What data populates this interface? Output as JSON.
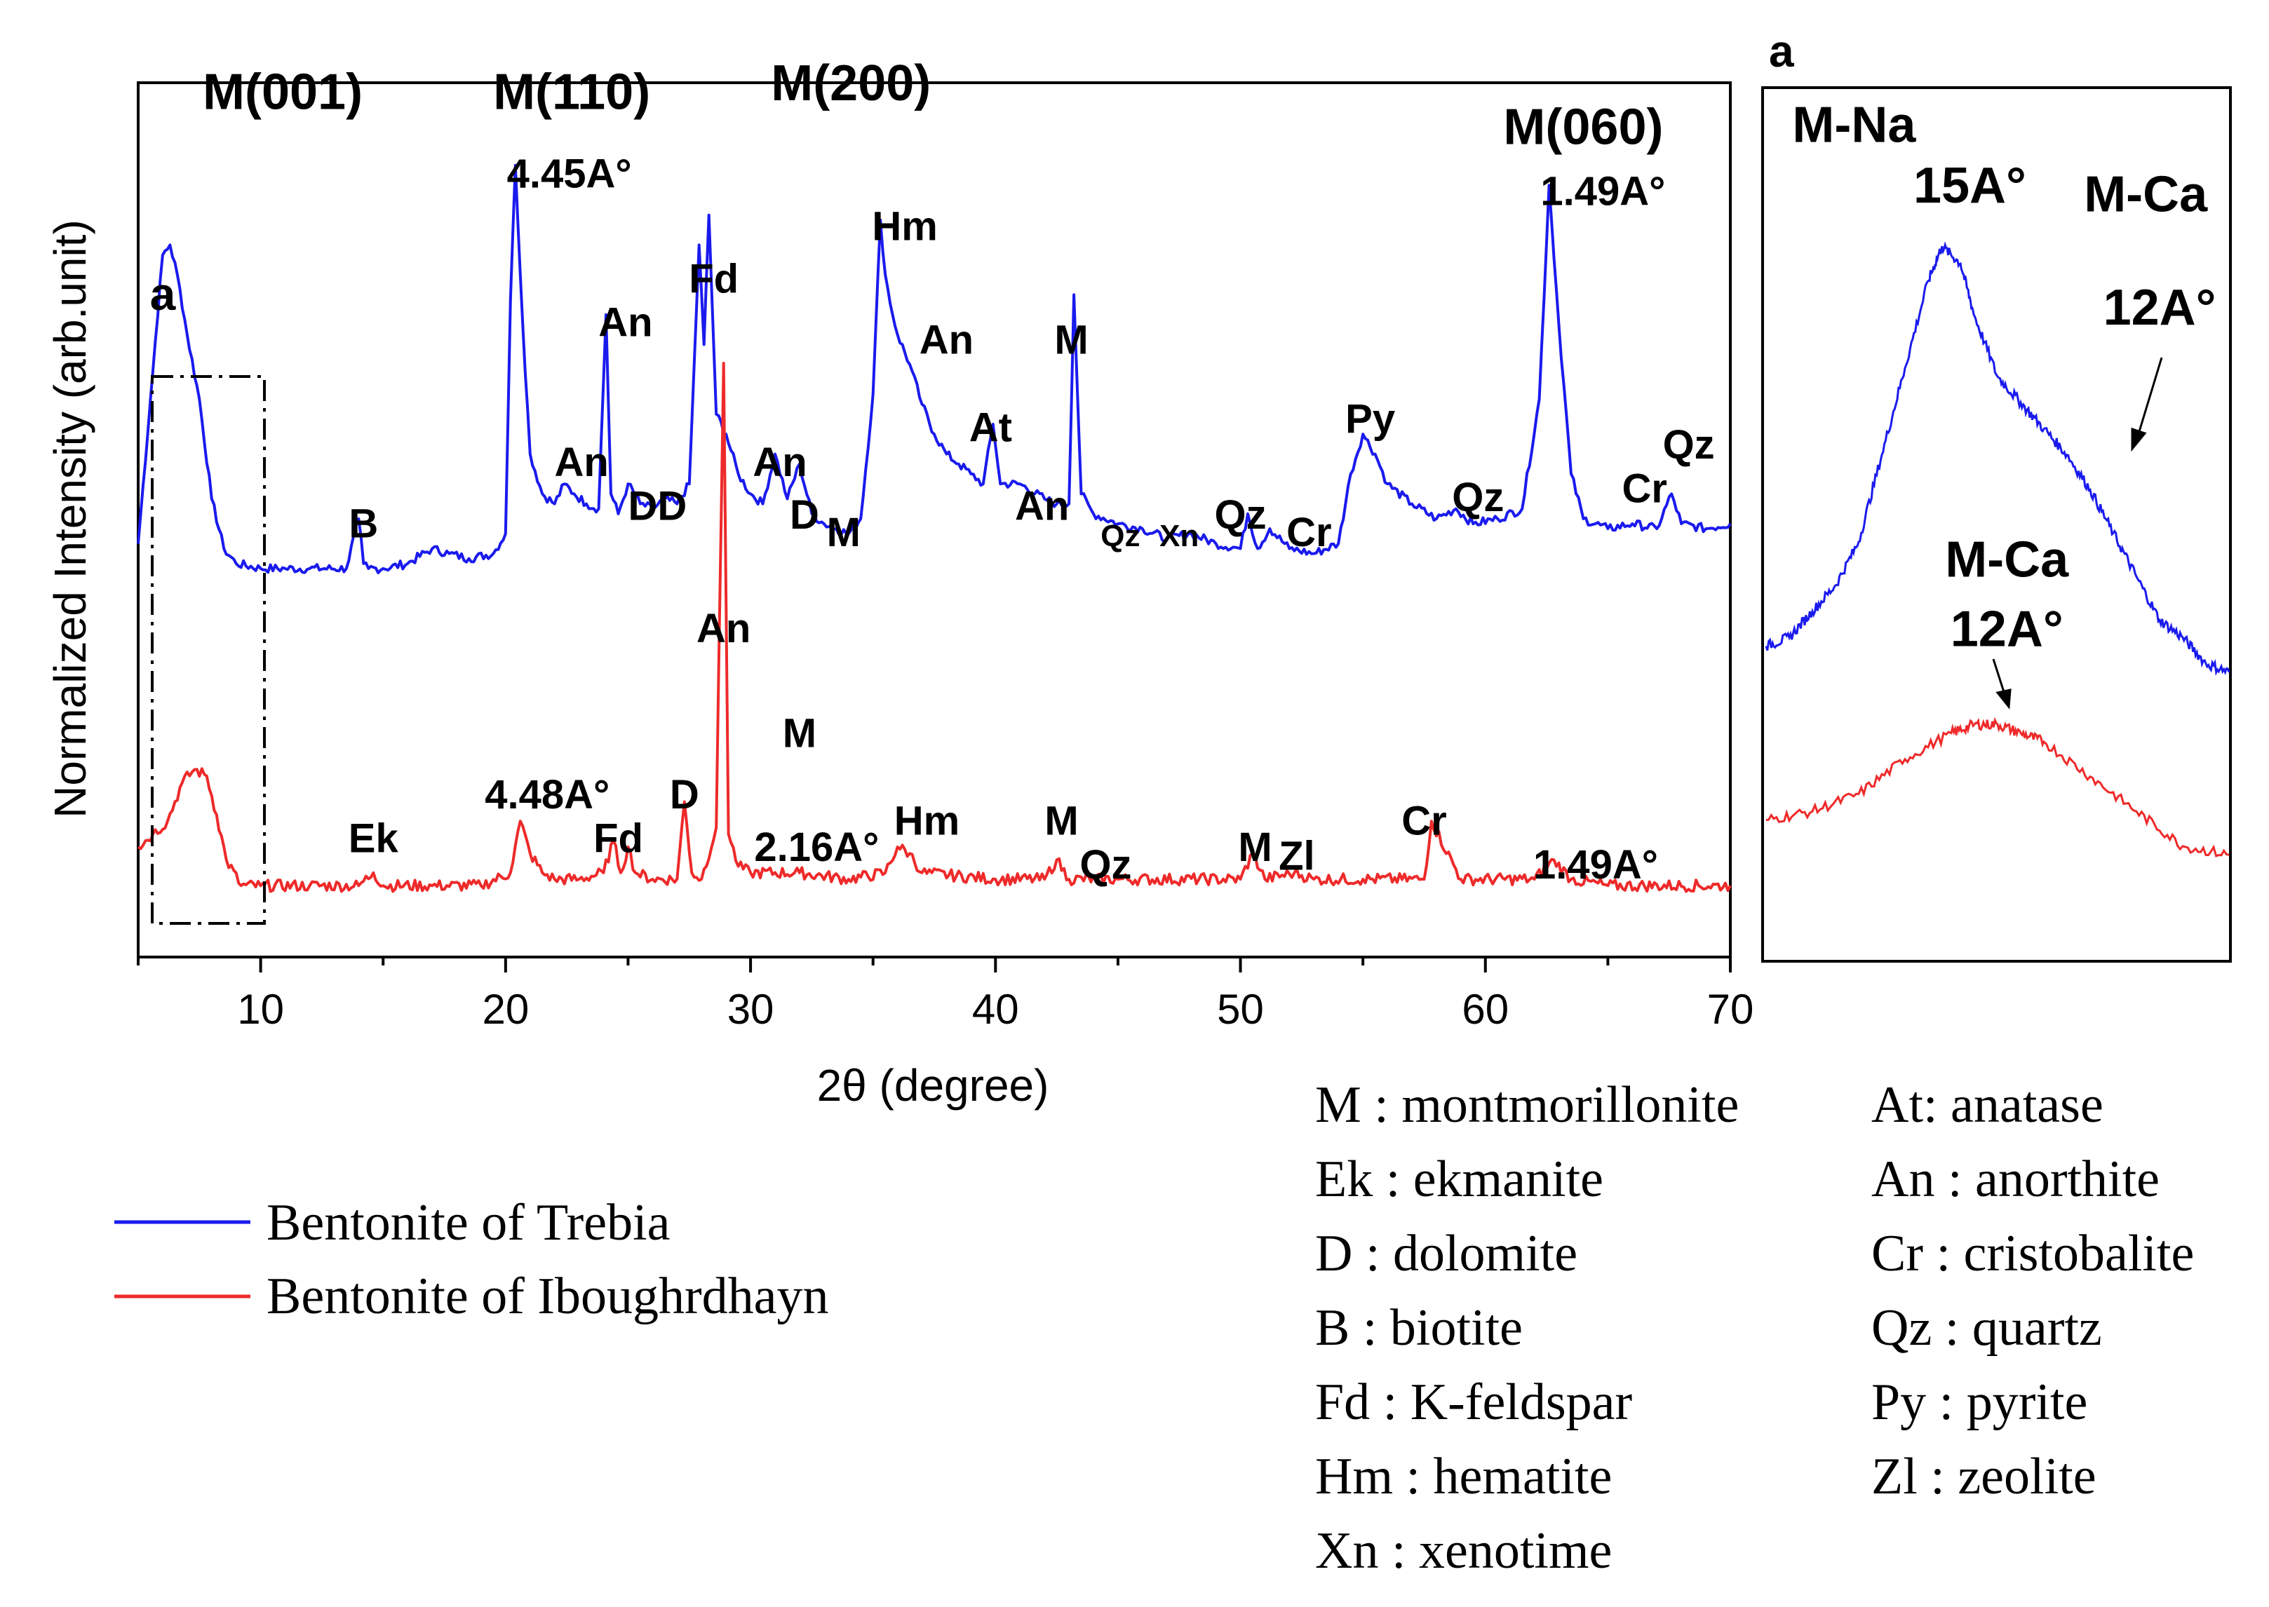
{
  "chart_data": [
    {
      "type": "line",
      "title": "",
      "xlabel": "2θ (degree)",
      "ylabel": "Normalized Intensity (arb.unit)",
      "xlim": [
        5,
        70
      ],
      "ylim": [
        0,
        1
      ],
      "xticks": [
        10,
        20,
        30,
        40,
        50,
        60,
        70
      ],
      "xtick_labels": [
        "10",
        "20",
        "30",
        "40",
        "50",
        "60",
        "70"
      ],
      "series": [
        {
          "name": "Bentonite of Trebia",
          "color": "#1a1aee",
          "x": [
            5.0,
            5.5,
            6.0,
            6.3,
            6.6,
            7.0,
            7.5,
            8.0,
            8.5,
            9.0,
            10.0,
            11.0,
            12.0,
            13.5,
            14.0,
            14.2,
            14.4,
            15.0,
            16.0,
            17.0,
            17.7,
            18.5,
            19.5,
            20.0,
            20.2,
            20.4,
            20.7,
            21.0,
            21.5,
            22.0,
            22.4,
            22.8,
            23.3,
            23.8,
            24.1,
            24.3,
            24.6,
            25.0,
            25.5,
            26.0,
            26.5,
            27.0,
            27.5,
            27.9,
            28.1,
            28.3,
            28.6,
            29.0,
            29.5,
            30.0,
            30.5,
            31.0,
            31.5,
            32.0,
            32.5,
            33.0,
            33.5,
            34.0,
            34.5,
            35.0,
            35.3,
            35.5,
            35.8,
            36.0,
            36.5,
            37.0,
            37.5,
            38.0,
            38.5,
            39.0,
            39.5,
            39.9,
            40.2,
            41.0,
            42.0,
            42.5,
            43.0,
            43.2,
            43.5,
            44.0,
            45.0,
            46.0,
            47.0,
            48.0,
            49.0,
            50.0,
            50.3,
            50.7,
            51.2,
            52.0,
            53.0,
            54.0,
            54.5,
            55.0,
            55.5,
            56.0,
            57.0,
            58.0,
            58.8,
            59.5,
            60.5,
            61.5,
            62.2,
            62.6,
            63.0,
            63.5,
            64.0,
            65.0,
            66.0,
            67.0,
            67.6,
            68.0,
            69.0,
            70.0
          ],
          "values": [
            0.26,
            0.55,
            0.84,
            0.86,
            0.8,
            0.68,
            0.55,
            0.35,
            0.25,
            0.22,
            0.21,
            0.21,
            0.21,
            0.21,
            0.31,
            0.22,
            0.21,
            0.21,
            0.22,
            0.25,
            0.24,
            0.23,
            0.24,
            0.28,
            0.75,
            1.02,
            0.7,
            0.44,
            0.36,
            0.34,
            0.38,
            0.36,
            0.34,
            0.33,
            0.72,
            0.36,
            0.32,
            0.38,
            0.34,
            0.33,
            0.35,
            0.34,
            0.38,
            0.86,
            0.66,
            0.92,
            0.52,
            0.48,
            0.4,
            0.36,
            0.34,
            0.44,
            0.35,
            0.42,
            0.32,
            0.3,
            0.29,
            0.28,
            0.31,
            0.56,
            0.91,
            0.8,
            0.72,
            0.68,
            0.62,
            0.54,
            0.48,
            0.44,
            0.42,
            0.4,
            0.38,
            0.5,
            0.38,
            0.38,
            0.35,
            0.34,
            0.34,
            0.76,
            0.36,
            0.32,
            0.3,
            0.29,
            0.27,
            0.28,
            0.26,
            0.25,
            0.32,
            0.25,
            0.29,
            0.25,
            0.24,
            0.26,
            0.4,
            0.48,
            0.44,
            0.38,
            0.34,
            0.31,
            0.33,
            0.3,
            0.31,
            0.33,
            0.55,
            0.98,
            0.7,
            0.4,
            0.31,
            0.29,
            0.3,
            0.29,
            0.36,
            0.3,
            0.29,
            0.3
          ]
        },
        {
          "name": "Bentonite of Iboughrdhayn",
          "color": "#ee2a2a",
          "x": [
            5.0,
            5.6,
            6.2,
            6.8,
            7.3,
            7.8,
            8.2,
            8.6,
            9.2,
            10.0,
            12.0,
            14.0,
            14.6,
            15.0,
            17.0,
            19.0,
            20.2,
            20.6,
            21.0,
            21.5,
            22.0,
            23.0,
            24.0,
            24.4,
            24.7,
            25.0,
            25.3,
            26.0,
            27.0,
            27.3,
            27.6,
            28.0,
            28.6,
            28.9,
            29.1,
            29.5,
            30.0,
            32.0,
            34.0,
            35.5,
            36.0,
            36.5,
            37.0,
            40.0,
            42.0,
            42.5,
            43.0,
            45.0,
            50.0,
            50.5,
            51.0,
            52.2,
            53.0,
            55.0,
            57.5,
            57.8,
            59.0,
            62.0,
            62.8,
            63.5,
            65.0,
            70.0
          ],
          "values": [
            0.1,
            0.12,
            0.14,
            0.2,
            0.22,
            0.21,
            0.15,
            0.08,
            0.04,
            0.04,
            0.04,
            0.04,
            0.06,
            0.04,
            0.04,
            0.04,
            0.06,
            0.14,
            0.09,
            0.06,
            0.05,
            0.05,
            0.06,
            0.11,
            0.06,
            0.1,
            0.06,
            0.05,
            0.05,
            0.17,
            0.06,
            0.05,
            0.13,
            0.85,
            0.12,
            0.07,
            0.06,
            0.06,
            0.05,
            0.06,
            0.1,
            0.09,
            0.06,
            0.05,
            0.05,
            0.08,
            0.05,
            0.05,
            0.05,
            0.09,
            0.05,
            0.06,
            0.05,
            0.05,
            0.05,
            0.14,
            0.05,
            0.05,
            0.08,
            0.05,
            0.04,
            0.04
          ]
        }
      ],
      "legend": {
        "position": "bottom-left",
        "entries": [
          "Bentonite of Trebia",
          "Bentonite of Iboughrdhayn"
        ]
      },
      "annotations": [
        {
          "text": "M(001)",
          "x": 10.9,
          "y": 0.97
        },
        {
          "text": "M(110)",
          "x": 22.7,
          "y": 0.97
        },
        {
          "text": "M(200)",
          "x": 34.1,
          "y": 0.98
        },
        {
          "text": "M(060)",
          "x": 64.0,
          "y": 0.93
        },
        {
          "text": "4.45A°",
          "x": 22.6,
          "y": 0.88
        },
        {
          "text": "1.49A°",
          "x": 64.8,
          "y": 0.86
        },
        {
          "text": "a",
          "x": 6.0,
          "y": 0.74
        },
        {
          "text": "B",
          "x": 14.2,
          "y": 0.48
        },
        {
          "text": "An",
          "x": 24.9,
          "y": 0.71
        },
        {
          "text": "An",
          "x": 23.1,
          "y": 0.55
        },
        {
          "text": "DD",
          "x": 26.2,
          "y": 0.5
        },
        {
          "text": "Fd",
          "x": 28.5,
          "y": 0.76
        },
        {
          "text": "Hm",
          "x": 36.3,
          "y": 0.82
        },
        {
          "text": "An",
          "x": 38.0,
          "y": 0.69
        },
        {
          "text": "An",
          "x": 31.2,
          "y": 0.55
        },
        {
          "text": "D",
          "x": 32.2,
          "y": 0.49
        },
        {
          "text": "M",
          "x": 33.8,
          "y": 0.47
        },
        {
          "text": "At",
          "x": 39.8,
          "y": 0.59
        },
        {
          "text": "M",
          "x": 43.1,
          "y": 0.69
        },
        {
          "text": "An",
          "x": 41.9,
          "y": 0.5
        },
        {
          "text": "Qz",
          "x": 45.1,
          "y": 0.47
        },
        {
          "text": "Xn",
          "x": 47.5,
          "y": 0.47
        },
        {
          "text": "Qz",
          "x": 50.0,
          "y": 0.49
        },
        {
          "text": "Cr",
          "x": 52.8,
          "y": 0.47
        },
        {
          "text": "Py",
          "x": 55.3,
          "y": 0.6
        },
        {
          "text": "Qz",
          "x": 59.7,
          "y": 0.51
        },
        {
          "text": "Cr",
          "x": 66.5,
          "y": 0.52
        },
        {
          "text": "Qz",
          "x": 68.3,
          "y": 0.57
        },
        {
          "text": "An",
          "x": 28.9,
          "y": 0.36
        },
        {
          "text": "Ek",
          "x": 14.6,
          "y": 0.12
        },
        {
          "text": "4.48A°",
          "x": 21.7,
          "y": 0.17
        },
        {
          "text": "Fd",
          "x": 24.6,
          "y": 0.12
        },
        {
          "text": "D",
          "x": 27.3,
          "y": 0.17
        },
        {
          "text": "M",
          "x": 32.0,
          "y": 0.24
        },
        {
          "text": "2.16A°",
          "x": 32.7,
          "y": 0.11
        },
        {
          "text": "Hm",
          "x": 37.2,
          "y": 0.14
        },
        {
          "text": "M",
          "x": 42.7,
          "y": 0.14
        },
        {
          "text": "Qz",
          "x": 44.5,
          "y": 0.09
        },
        {
          "text": "M",
          "x": 50.6,
          "y": 0.11
        },
        {
          "text": "Zl",
          "x": 52.3,
          "y": 0.1
        },
        {
          "text": "Cr",
          "x": 57.5,
          "y": 0.14
        },
        {
          "text": "1.49A°",
          "x": 64.5,
          "y": 0.09
        }
      ]
    },
    {
      "type": "line",
      "title": "a",
      "xlabel": "",
      "ylabel": "",
      "xlim": [
        0,
        1
      ],
      "ylim": [
        0,
        1
      ],
      "series": [
        {
          "name": "Bentonite of Trebia",
          "color": "#1a1aee",
          "x": [
            0,
            0.05,
            0.1,
            0.15,
            0.2,
            0.25,
            0.3,
            0.35,
            0.38,
            0.42,
            0.45,
            0.5,
            0.55,
            0.6,
            0.65,
            0.7,
            0.75,
            0.8,
            0.85,
            0.9,
            0.95,
            1.0
          ],
          "values": [
            0.36,
            0.37,
            0.4,
            0.43,
            0.48,
            0.58,
            0.68,
            0.78,
            0.82,
            0.8,
            0.74,
            0.67,
            0.64,
            0.61,
            0.58,
            0.54,
            0.49,
            0.44,
            0.39,
            0.37,
            0.34,
            0.33
          ]
        },
        {
          "name": "Bentonite of Iboughrdhayn",
          "color": "#ee2a2a",
          "x": [
            0,
            0.1,
            0.2,
            0.3,
            0.4,
            0.45,
            0.5,
            0.55,
            0.6,
            0.7,
            0.8,
            0.9,
            1.0
          ],
          "values": [
            0.16,
            0.17,
            0.19,
            0.23,
            0.26,
            0.27,
            0.27,
            0.26,
            0.25,
            0.21,
            0.17,
            0.13,
            0.12
          ]
        }
      ],
      "annotations": [
        {
          "text": "M-Na",
          "x": 0.19,
          "y": 0.94
        },
        {
          "text": "15A°",
          "x": 0.44,
          "y": 0.87
        },
        {
          "text": "M-Ca",
          "x": 0.82,
          "y": 0.86
        },
        {
          "text": "12A°",
          "x": 0.85,
          "y": 0.73
        },
        {
          "text": "M-Ca",
          "x": 0.52,
          "y": 0.44
        },
        {
          "text": "12A°",
          "x": 0.52,
          "y": 0.36
        }
      ]
    }
  ],
  "abbreviations_left": [
    "M : montmorillonite",
    "Ek : ekmanite",
    "D : dolomite",
    "B : biotite",
    "Fd : K-feldspar",
    "Hm : hematite",
    "Xn : xenotime"
  ],
  "abbreviations_right": [
    "At: anatase",
    "An : anorthite",
    "Cr : cristobalite",
    "Qz : quartz",
    "Py : pyrite",
    "Zl :  zeolite"
  ]
}
